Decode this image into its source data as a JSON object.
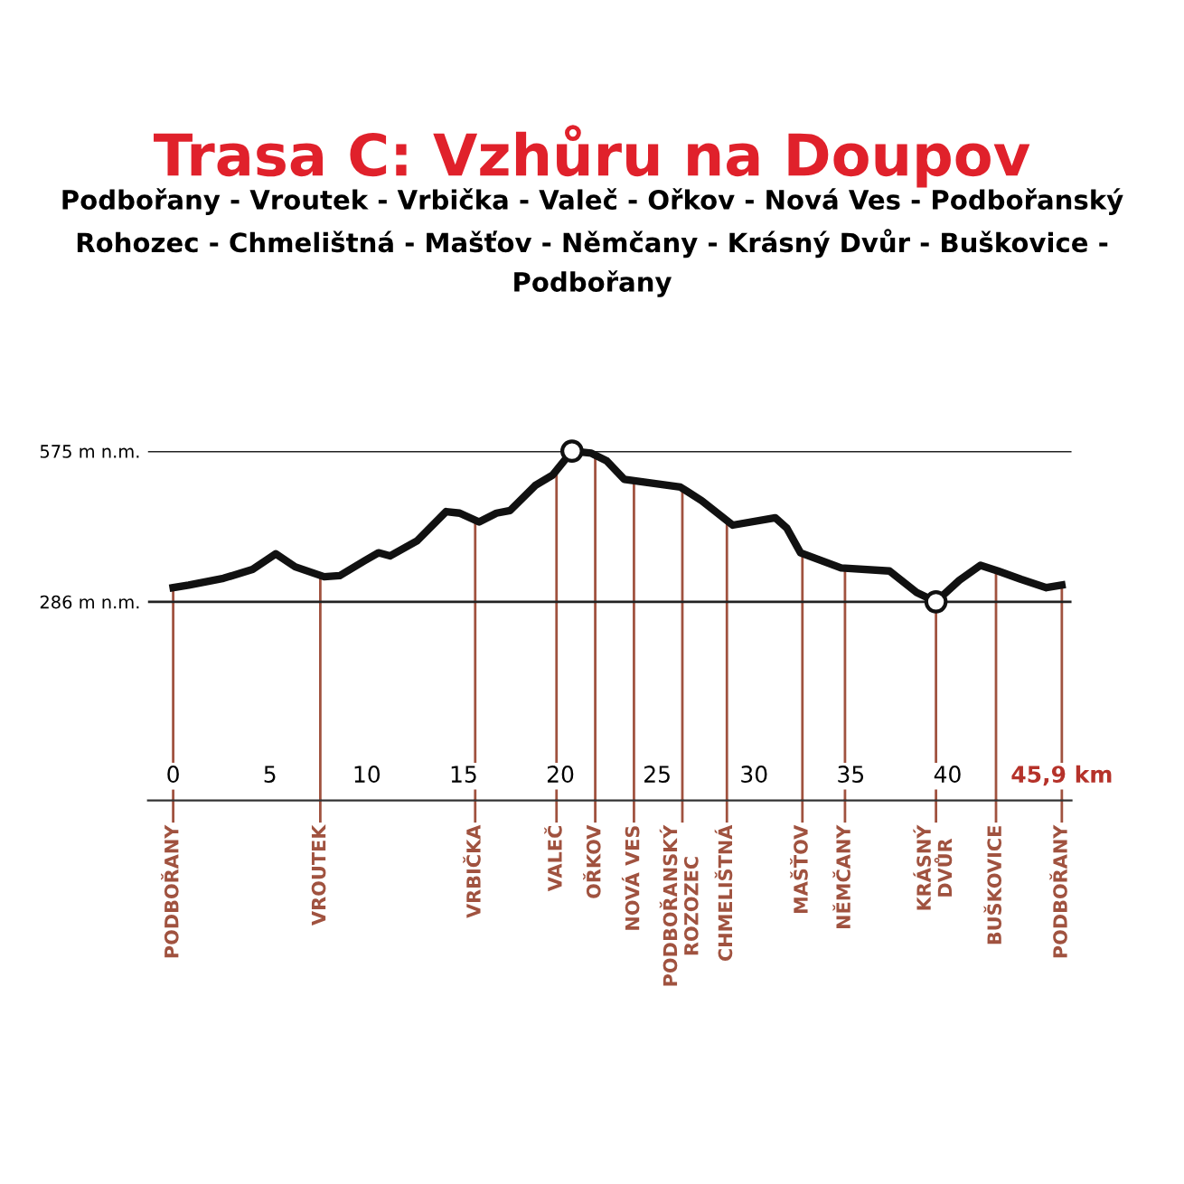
{
  "chart_data": {
    "type": "line",
    "title": "Trasa C: Vzhůru na Doupov",
    "subtitle": "Podbořany - Vroutek - Vrbička - Valeč - Ořkov - Nová Ves - Podbořanský Rohozec - Chmelištná - Mašťov - Němčany - Krásný Dvůr - Buškovice - Podbořany",
    "series": [
      {
        "color": "#111111",
        "x": [
          0,
          0.8,
          2.6,
          4.1,
          5.3,
          6.3,
          7.8,
          8.6,
          9.9,
          10.6,
          11.2,
          12.6,
          14.1,
          14.8,
          15.8,
          16.7,
          17.4,
          18.7,
          19.6,
          20.6,
          21.6,
          22.4,
          23.3,
          26.2,
          27.3,
          28.9,
          31.1,
          31.7,
          32.4,
          34.5,
          37.0,
          38.4,
          39.4,
          40.6,
          41.7,
          42.6,
          43.8,
          45.1,
          45.9
        ],
        "values": [
          313,
          318,
          331,
          348,
          378,
          353,
          334,
          336,
          365,
          380,
          374,
          403,
          459,
          456,
          439,
          456,
          461,
          509,
          529,
          575,
          571,
          556,
          521,
          506,
          480,
          433,
          447,
          427,
          380,
          351,
          345,
          304,
          286,
          327,
          356,
          345,
          329,
          313,
          318
        ]
      },
      {
        "type": "scatter",
        "color": "#111111",
        "marker": "circle",
        "x": [
          20.6,
          39.4
        ],
        "values": [
          575,
          286
        ]
      }
    ],
    "xlim": [
      -1.3,
      46.4
    ],
    "ylim": [
      -95,
      575
    ],
    "xticks": [
      0,
      5,
      10,
      15,
      20,
      25,
      30,
      35,
      40,
      {
        "value": 45.9,
        "label": "45,9 km"
      }
    ],
    "yticks": [
      {
        "value": 286,
        "label": "286 m n.m."
      },
      {
        "value": 575,
        "label": "575 m n.m."
      }
    ],
    "grid": "y",
    "ref_lines": [
      {
        "axis": "x",
        "value": 0,
        "label": "PODBOŘANY",
        "color": "#a0523f"
      },
      {
        "axis": "x",
        "value": 7.6,
        "label": "VROUTEK",
        "color": "#a0523f"
      },
      {
        "axis": "x",
        "value": 15.6,
        "label": "VRBIČKA",
        "color": "#a0523f"
      },
      {
        "axis": "x",
        "value": 19.8,
        "label": "VALEČ",
        "color": "#a0523f"
      },
      {
        "axis": "x",
        "value": 21.8,
        "label": "OŘKOV",
        "color": "#a0523f"
      },
      {
        "axis": "x",
        "value": 23.8,
        "label": "NOVÁ VES",
        "color": "#a0523f"
      },
      {
        "axis": "x",
        "value": 26.3,
        "label": "PODBOŘANSKÝ\nROZOZEC",
        "color": "#a0523f"
      },
      {
        "axis": "x",
        "value": 28.6,
        "label": "CHMELIŠTNÁ",
        "color": "#a0523f"
      },
      {
        "axis": "x",
        "value": 32.5,
        "label": "MAŠŤOV",
        "color": "#a0523f"
      },
      {
        "axis": "x",
        "value": 34.7,
        "label": "NĚMČANY",
        "color": "#a0523f"
      },
      {
        "axis": "x",
        "value": 39.4,
        "label": "KRÁSNÝ\nDVŮR",
        "color": "#a0523f"
      },
      {
        "axis": "x",
        "value": 42.5,
        "label": "BUŠKOVICE",
        "color": "#a0523f"
      },
      {
        "axis": "x",
        "value": 45.9,
        "label": "PODBOŘANY",
        "color": "#a0523f"
      }
    ]
  }
}
